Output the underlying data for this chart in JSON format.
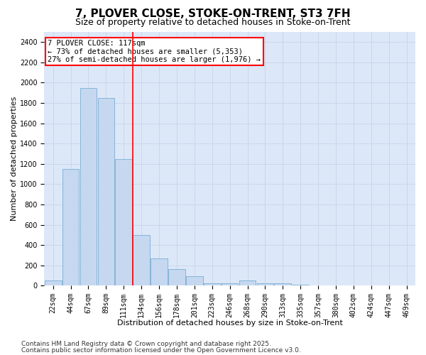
{
  "title1": "7, PLOVER CLOSE, STOKE-ON-TRENT, ST3 7FH",
  "title2": "Size of property relative to detached houses in Stoke-on-Trent",
  "xlabel": "Distribution of detached houses by size in Stoke-on-Trent",
  "ylabel": "Number of detached properties",
  "categories": [
    "22sqm",
    "44sqm",
    "67sqm",
    "89sqm",
    "111sqm",
    "134sqm",
    "156sqm",
    "178sqm",
    "201sqm",
    "223sqm",
    "246sqm",
    "268sqm",
    "290sqm",
    "313sqm",
    "335sqm",
    "357sqm",
    "380sqm",
    "402sqm",
    "424sqm",
    "447sqm",
    "469sqm"
  ],
  "values": [
    50,
    1150,
    1950,
    1850,
    1250,
    500,
    270,
    160,
    90,
    25,
    25,
    50,
    20,
    20,
    10,
    5,
    5,
    2,
    2,
    1,
    1
  ],
  "bar_color": "#c5d8f0",
  "bar_edge_color": "#7aadd4",
  "vline_x_index": 4,
  "annotation_line1": "7 PLOVER CLOSE: 117sqm",
  "annotation_line2": "← 73% of detached houses are smaller (5,353)",
  "annotation_line3": "27% of semi-detached houses are larger (1,976) →",
  "annotation_box_color": "white",
  "annotation_box_edge_color": "red",
  "vline_color": "red",
  "ylim": [
    0,
    2500
  ],
  "yticks": [
    0,
    200,
    400,
    600,
    800,
    1000,
    1200,
    1400,
    1600,
    1800,
    2000,
    2200,
    2400
  ],
  "grid_color": "#c8d4e8",
  "bg_color": "#dce8f8",
  "footer1": "Contains HM Land Registry data © Crown copyright and database right 2025.",
  "footer2": "Contains public sector information licensed under the Open Government Licence v3.0.",
  "title1_fontsize": 11,
  "title2_fontsize": 9,
  "xlabel_fontsize": 8,
  "ylabel_fontsize": 8,
  "tick_fontsize": 7,
  "annotation_fontsize": 7.5,
  "footer_fontsize": 6.5
}
